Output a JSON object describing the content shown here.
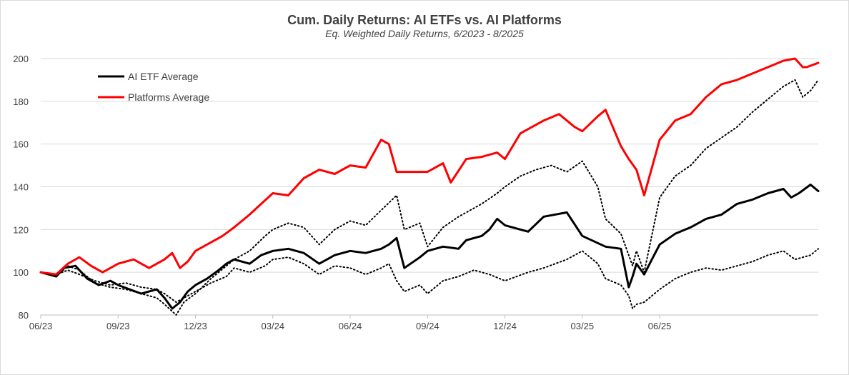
{
  "chart_data": {
    "type": "line",
    "title": "Cum. Daily Returns: AI ETFs vs. AI Platforms",
    "subtitle": "Eq. Weighted Daily Returns, 6/2023 - 8/2025",
    "xlabel": "",
    "ylabel": "",
    "ylim": [
      80,
      200
    ],
    "yticks": [
      80,
      100,
      120,
      140,
      160,
      180,
      200
    ],
    "xtick_labels": [
      "06/23",
      "09/23",
      "12/23",
      "03/24",
      "06/24",
      "09/24",
      "12/24",
      "03/25",
      "06/25"
    ],
    "grid": "horizontal",
    "legend": "top-left",
    "series": [
      {
        "name": "AI ETF Average",
        "color": "#000000",
        "style": "solid",
        "x": [
          0,
          0.2,
          0.3,
          0.45,
          0.6,
          0.75,
          0.9,
          1.0,
          1.15,
          1.3,
          1.5,
          1.6,
          1.7,
          1.8,
          1.9,
          2.0,
          2.15,
          2.3,
          2.4,
          2.5,
          2.7,
          2.85,
          3.0,
          3.2,
          3.4,
          3.6,
          3.8,
          4.0,
          4.2,
          4.4,
          4.5,
          4.6,
          4.7,
          4.9,
          5.0,
          5.2,
          5.4,
          5.5,
          5.7,
          5.8,
          5.9,
          6.0,
          6.3,
          6.5,
          6.8,
          7.0,
          7.3,
          7.5,
          7.6,
          7.65,
          7.7,
          7.8,
          7.9,
          8.0,
          8.2,
          8.4,
          8.6,
          8.8,
          9.0,
          9.2,
          9.4,
          9.6,
          9.7,
          9.8,
          9.95,
          10.05
        ],
        "values": [
          100,
          98,
          102,
          103,
          97,
          94,
          96,
          94,
          92,
          90,
          92,
          88,
          83,
          86,
          91,
          94,
          97,
          101,
          104,
          106,
          104,
          108,
          110,
          111,
          109,
          104,
          108,
          110,
          109,
          111,
          113,
          116,
          102,
          107,
          110,
          112,
          111,
          115,
          117,
          120,
          125,
          122,
          119,
          126,
          128,
          117,
          112,
          111,
          93,
          98,
          104,
          99,
          106,
          113,
          118,
          121,
          125,
          127,
          132,
          134,
          137,
          139,
          135,
          137,
          141,
          138
        ]
      },
      {
        "name": "Platforms Average",
        "color": "#ff0000",
        "style": "solid",
        "x": [
          0,
          0.2,
          0.35,
          0.5,
          0.65,
          0.8,
          1.0,
          1.2,
          1.4,
          1.6,
          1.7,
          1.8,
          1.9,
          2.0,
          2.2,
          2.35,
          2.5,
          2.7,
          2.85,
          3.0,
          3.2,
          3.4,
          3.6,
          3.8,
          4.0,
          4.2,
          4.4,
          4.5,
          4.6,
          4.8,
          5.0,
          5.2,
          5.3,
          5.5,
          5.7,
          5.9,
          6.0,
          6.2,
          6.5,
          6.7,
          6.9,
          7.0,
          7.2,
          7.3,
          7.5,
          7.6,
          7.7,
          7.8,
          8.0,
          8.2,
          8.4,
          8.6,
          8.8,
          9.0,
          9.2,
          9.4,
          9.6,
          9.75,
          9.85,
          9.9,
          10.05
        ],
        "values": [
          100,
          99,
          104,
          107,
          103,
          100,
          104,
          106,
          102,
          106,
          109,
          102,
          105,
          110,
          114,
          117,
          121,
          127,
          132,
          137,
          136,
          144,
          148,
          146,
          150,
          149,
          162,
          160,
          147,
          147,
          147,
          151,
          142,
          153,
          154,
          156,
          153,
          165,
          171,
          174,
          168,
          166,
          173,
          176,
          159,
          153,
          148,
          136,
          162,
          171,
          174,
          182,
          188,
          190,
          193,
          196,
          199,
          200,
          196,
          196,
          198
        ]
      },
      {
        "name": "",
        "color": "#000000",
        "style": "dotted",
        "x": [
          0,
          0.2,
          0.35,
          0.5,
          0.7,
          0.9,
          1.1,
          1.3,
          1.5,
          1.6,
          1.75,
          1.85,
          2.0,
          2.2,
          2.4,
          2.5,
          2.7,
          2.9,
          3.0,
          3.2,
          3.4,
          3.6,
          3.8,
          4.0,
          4.2,
          4.4,
          4.6,
          4.7,
          4.9,
          5.0,
          5.2,
          5.4,
          5.5,
          5.7,
          5.9,
          6.0,
          6.2,
          6.4,
          6.6,
          6.8,
          7.0,
          7.2,
          7.3,
          7.5,
          7.6,
          7.65,
          7.7,
          7.8,
          8.0,
          8.2,
          8.4,
          8.6,
          8.8,
          9.0,
          9.2,
          9.4,
          9.6,
          9.75,
          9.85,
          9.95,
          10.05
        ],
        "values": [
          100,
          98,
          103,
          101,
          95,
          93,
          92,
          90,
          88,
          85,
          80,
          86,
          90,
          97,
          103,
          106,
          110,
          117,
          120,
          123,
          121,
          113,
          120,
          124,
          122,
          129,
          136,
          120,
          123,
          112,
          121,
          126,
          128,
          132,
          137,
          140,
          145,
          148,
          150,
          147,
          152,
          140,
          125,
          118,
          108,
          103,
          110,
          100,
          135,
          145,
          150,
          158,
          163,
          168,
          175,
          181,
          187,
          190,
          182,
          185,
          190
        ]
      },
      {
        "name": "",
        "color": "#000000",
        "style": "dotted",
        "x": [
          0,
          0.2,
          0.35,
          0.5,
          0.7,
          0.9,
          1.1,
          1.3,
          1.5,
          1.6,
          1.75,
          1.85,
          2.0,
          2.2,
          2.4,
          2.5,
          2.7,
          2.9,
          3.0,
          3.2,
          3.4,
          3.6,
          3.8,
          4.0,
          4.2,
          4.4,
          4.5,
          4.6,
          4.7,
          4.9,
          5.0,
          5.2,
          5.4,
          5.6,
          5.8,
          6.0,
          6.3,
          6.5,
          6.8,
          7.0,
          7.2,
          7.3,
          7.5,
          7.6,
          7.65,
          7.7,
          7.8,
          8.0,
          8.2,
          8.4,
          8.6,
          8.8,
          9.0,
          9.2,
          9.4,
          9.6,
          9.75,
          9.85,
          9.95,
          10.05
        ],
        "values": [
          100,
          99,
          101,
          99,
          96,
          94,
          95,
          93,
          92,
          90,
          86,
          88,
          91,
          95,
          98,
          102,
          100,
          103,
          106,
          107,
          104,
          99,
          103,
          102,
          99,
          102,
          104,
          96,
          91,
          94,
          90,
          96,
          98,
          101,
          99,
          96,
          100,
          102,
          106,
          110,
          104,
          97,
          94,
          89,
          83,
          85,
          86,
          92,
          97,
          100,
          102,
          101,
          103,
          105,
          108,
          110,
          106,
          107,
          108,
          111
        ]
      }
    ]
  }
}
